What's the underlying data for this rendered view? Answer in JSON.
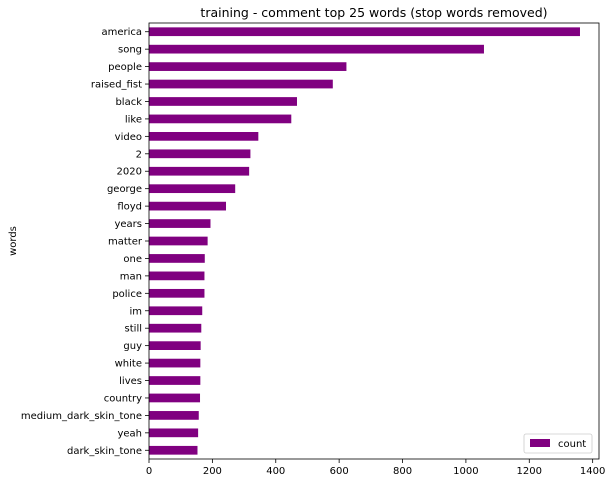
{
  "chart_data": {
    "type": "bar",
    "orientation": "horizontal",
    "title": "training - comment top 25 words (stop words removed)",
    "xlabel": "",
    "ylabel": "words",
    "xlim": [
      0,
      1420
    ],
    "xticks": [
      0,
      200,
      400,
      600,
      800,
      1000,
      1200,
      1400
    ],
    "grid": false,
    "legend_position": "bottom-right",
    "bar_color": "#800080",
    "series": [
      {
        "name": "count",
        "categories": [
          "america",
          "song",
          "people",
          "raised_fist",
          "black",
          "like",
          "video",
          "2",
          "2020",
          "george",
          "floyd",
          "years",
          "matter",
          "one",
          "man",
          "police",
          "im",
          "still",
          "guy",
          "white",
          "lives",
          "country",
          "medium_dark_skin_tone",
          "yeah",
          "dark_skin_tone"
        ],
        "values": [
          1360,
          1057,
          623,
          580,
          467,
          449,
          345,
          320,
          316,
          272,
          243,
          194,
          185,
          176,
          175,
          175,
          168,
          165,
          163,
          162,
          162,
          161,
          157,
          155,
          153
        ]
      }
    ]
  }
}
